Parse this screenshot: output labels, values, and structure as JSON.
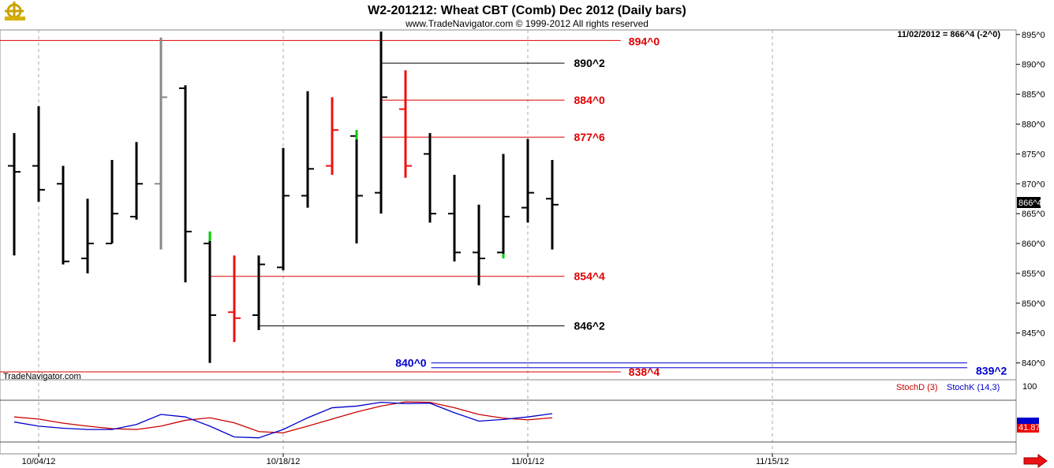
{
  "header": {
    "title": "W2-201212:  Wheat CBT (Comb) Dec 2012  (Daily bars)",
    "copyright": "www.TradeNavigator.com © 1999-2012 All rights reserved",
    "last_value": "11/02/2012 = 866^4 (-2^0)",
    "watermark": "TradeNavigator.com",
    "logo_icon": "ship-wheel-icon"
  },
  "price_marker": "866^4",
  "stoch_marker": "41.87",
  "stoch_labels": {
    "top": "100",
    "d": "StochD (3)",
    "k": "StochK (14,3)"
  },
  "colors": {
    "bar_black": "#000000",
    "bar_red": "#ee1111",
    "bar_gray": "#888888",
    "bar_green": "#00cc00",
    "level_red": "#dd0000",
    "level_black": "#000000",
    "level_blue": "#0000cc",
    "stoch_d": "#cc0000",
    "stoch_k": "#0000cc"
  },
  "chart_data": {
    "type": "ohlc",
    "title": "W2-201212:  Wheat CBT (Comb) Dec 2012  (Daily bars)",
    "y_range": [
      838.5,
      895.5
    ],
    "y_ticks": [
      {
        "v": 895,
        "label": "895^0"
      },
      {
        "v": 890,
        "label": "890^0"
      },
      {
        "v": 885,
        "label": "885^0"
      },
      {
        "v": 880,
        "label": "880^0"
      },
      {
        "v": 875,
        "label": "875^0"
      },
      {
        "v": 870,
        "label": "870^0"
      },
      {
        "v": 865,
        "label": "865^0"
      },
      {
        "v": 860,
        "label": "860^0"
      },
      {
        "v": 855,
        "label": "855^0"
      },
      {
        "v": 850,
        "label": "850^0"
      },
      {
        "v": 845,
        "label": "845^0"
      },
      {
        "v": 840,
        "label": "840^0"
      }
    ],
    "x_ticks": [
      {
        "i": 1,
        "label": "10/04/12"
      },
      {
        "i": 11,
        "label": "10/18/12"
      },
      {
        "i": 21,
        "label": "11/01/12"
      },
      {
        "i": 31,
        "label": "11/15/12"
      }
    ],
    "bars": [
      {
        "o": 873,
        "h": 878.5,
        "l": 858,
        "c": 872,
        "color": "black"
      },
      {
        "o": 873,
        "h": 883,
        "l": 867,
        "c": 869,
        "color": "black"
      },
      {
        "o": 870,
        "h": 873,
        "l": 856.5,
        "c": 857,
        "color": "black"
      },
      {
        "o": 857.5,
        "h": 867.5,
        "l": 855,
        "c": 860,
        "color": "black"
      },
      {
        "o": 860,
        "h": 874,
        "l": 860,
        "c": 865,
        "color": "black"
      },
      {
        "o": 864.5,
        "h": 877,
        "l": 864,
        "c": 870,
        "color": "black"
      },
      {
        "o": 870,
        "h": 894.5,
        "l": 859,
        "c": 884.5,
        "color": "gray"
      },
      {
        "o": 886,
        "h": 886.5,
        "l": 853.5,
        "c": 862,
        "color": "black"
      },
      {
        "o": 860,
        "h": 862,
        "l": 840,
        "c": 848,
        "color": "black",
        "green_top": 862
      },
      {
        "o": 848.5,
        "h": 858,
        "l": 843.5,
        "c": 847.5,
        "color": "red"
      },
      {
        "o": 848,
        "h": 858,
        "l": 845.5,
        "c": 856.5,
        "color": "black"
      },
      {
        "o": 856,
        "h": 876,
        "l": 855.5,
        "c": 868,
        "color": "black"
      },
      {
        "o": 868,
        "h": 885.5,
        "l": 866,
        "c": 872.5,
        "color": "black"
      },
      {
        "o": 873,
        "h": 884.5,
        "l": 871.5,
        "c": 879,
        "color": "red"
      },
      {
        "o": 878,
        "h": 879,
        "l": 860,
        "c": 868,
        "color": "black",
        "green_top": 879
      },
      {
        "o": 868.5,
        "h": 895.5,
        "l": 865,
        "c": 884.5,
        "color": "black"
      },
      {
        "o": 882.5,
        "h": 889,
        "l": 871,
        "c": 873,
        "color": "red"
      },
      {
        "o": 875,
        "h": 878.5,
        "l": 863.5,
        "c": 865,
        "color": "black"
      },
      {
        "o": 865,
        "h": 871.5,
        "l": 857,
        "c": 858.5,
        "color": "black"
      },
      {
        "o": 858.5,
        "h": 866.5,
        "l": 853,
        "c": 857.5,
        "color": "black"
      },
      {
        "o": 858.5,
        "h": 875,
        "l": 857.5,
        "c": 864.5,
        "color": "black",
        "green_bottom": 857.5
      },
      {
        "o": 866,
        "h": 877.5,
        "l": 863.5,
        "c": 868.5,
        "color": "black"
      },
      {
        "o": 867.5,
        "h": 874,
        "l": 859,
        "c": 866.5,
        "color": "black"
      }
    ],
    "levels": [
      {
        "v": 894,
        "label": "894^0",
        "color": "red",
        "from": "left",
        "to": 24.8
      },
      {
        "v": 890.2,
        "label": "890^2",
        "color": "black",
        "from": 15,
        "to": 22.5
      },
      {
        "v": 884,
        "label": "884^0",
        "color": "red",
        "from": 15,
        "to": 22.5
      },
      {
        "v": 877.8,
        "label": "877^6",
        "color": "red",
        "from": 15,
        "to": 22.5
      },
      {
        "v": 854.5,
        "label": "854^4",
        "color": "red",
        "from": 8,
        "to": 22.5
      },
      {
        "v": 846.2,
        "label": "846^2",
        "color": "black",
        "from": 10,
        "to": 22.5
      },
      {
        "v": 838.5,
        "label": "838^4",
        "color": "red",
        "from": "left",
        "to": 24.8
      }
    ],
    "blue_levels": [
      {
        "v": 840,
        "label": "840^0"
      },
      {
        "v": 839.2,
        "label": "839^2"
      }
    ],
    "stoch": {
      "range": [
        0,
        100
      ],
      "d": [
        60,
        55,
        45,
        38,
        32,
        30,
        38,
        52,
        58,
        46,
        25,
        22,
        38,
        55,
        72,
        86,
        96,
        95,
        82,
        66,
        57,
        53,
        58
      ],
      "k": [
        48,
        38,
        33,
        30,
        30,
        42,
        66,
        60,
        38,
        12,
        10,
        30,
        58,
        82,
        86,
        95,
        92,
        93,
        70,
        50,
        54,
        60,
        68
      ]
    }
  }
}
